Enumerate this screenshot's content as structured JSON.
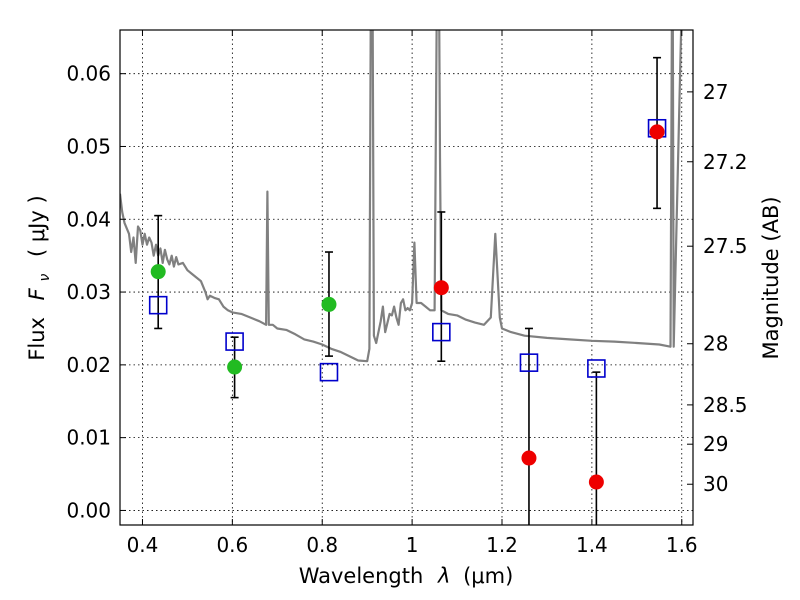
{
  "chart_data": {
    "type": "scatter",
    "title": "",
    "xlabel": "Wavelength",
    "xlabel_symbol": "λ",
    "xlabel_unit": "(μm)",
    "ylabel": "Flux",
    "ylabel_symbol": "F",
    "ylabel_subscript": "ν",
    "ylabel_unit": "( μJy )",
    "y2label": "Magnitude (AB)",
    "xlim": [
      0.35,
      1.625
    ],
    "ylim": [
      -0.002,
      0.066
    ],
    "xticks": [
      0.4,
      0.6,
      0.8,
      1.0,
      1.2,
      1.4,
      1.6
    ],
    "xtick_labels": [
      "0.4",
      "0.6",
      "0.8",
      "1",
      "1.2",
      "1.4",
      "1.6"
    ],
    "yticks": [
      0.0,
      0.01,
      0.02,
      0.03,
      0.04,
      0.05,
      0.06
    ],
    "ytick_labels": [
      "0.00",
      "0.01",
      "0.02",
      "0.03",
      "0.04",
      "0.05",
      "0.06"
    ],
    "magnitude_ticks": [
      {
        "label": "27",
        "flux": 0.0575
      },
      {
        "label": "27.2",
        "flux": 0.0479
      },
      {
        "label": "27.5",
        "flux": 0.0363
      },
      {
        "label": "28",
        "flux": 0.0229
      },
      {
        "label": "28.5",
        "flux": 0.0145
      },
      {
        "label": "29",
        "flux": 0.0091
      },
      {
        "label": "30",
        "flux": 0.0036
      }
    ],
    "grid": true,
    "colors": {
      "model": "#808080",
      "detection": "#22bb22",
      "measurement": "#ee0000",
      "model_flux": "#0000cc",
      "errorbar": "#000000"
    },
    "model_sed": [
      [
        0.35,
        0.0435
      ],
      [
        0.355,
        0.041
      ],
      [
        0.36,
        0.0395
      ],
      [
        0.37,
        0.038
      ],
      [
        0.375,
        0.0355
      ],
      [
        0.38,
        0.0375
      ],
      [
        0.385,
        0.034
      ],
      [
        0.39,
        0.039
      ],
      [
        0.395,
        0.0385
      ],
      [
        0.4,
        0.0365
      ],
      [
        0.405,
        0.038
      ],
      [
        0.41,
        0.0365
      ],
      [
        0.415,
        0.0375
      ],
      [
        0.42,
        0.0368
      ],
      [
        0.425,
        0.035
      ],
      [
        0.43,
        0.0365
      ],
      [
        0.435,
        0.035
      ],
      [
        0.44,
        0.036
      ],
      [
        0.445,
        0.034
      ],
      [
        0.45,
        0.0358
      ],
      [
        0.455,
        0.0345
      ],
      [
        0.46,
        0.0338
      ],
      [
        0.465,
        0.035
      ],
      [
        0.47,
        0.0335
      ],
      [
        0.475,
        0.0348
      ],
      [
        0.48,
        0.0338
      ],
      [
        0.49,
        0.034
      ],
      [
        0.5,
        0.033
      ],
      [
        0.51,
        0.0325
      ],
      [
        0.52,
        0.032
      ],
      [
        0.53,
        0.0315
      ],
      [
        0.54,
        0.03
      ],
      [
        0.545,
        0.029
      ],
      [
        0.55,
        0.0295
      ],
      [
        0.56,
        0.0292
      ],
      [
        0.57,
        0.029
      ],
      [
        0.58,
        0.028
      ],
      [
        0.59,
        0.0275
      ],
      [
        0.6,
        0.0272
      ],
      [
        0.62,
        0.027
      ],
      [
        0.64,
        0.0265
      ],
      [
        0.66,
        0.026
      ],
      [
        0.675,
        0.0255
      ],
      [
        0.678,
        0.0438
      ],
      [
        0.681,
        0.0255
      ],
      [
        0.69,
        0.0255
      ],
      [
        0.7,
        0.025
      ],
      [
        0.72,
        0.0248
      ],
      [
        0.74,
        0.0242
      ],
      [
        0.76,
        0.0235
      ],
      [
        0.78,
        0.0232
      ],
      [
        0.8,
        0.0228
      ],
      [
        0.82,
        0.0222
      ],
      [
        0.84,
        0.0218
      ],
      [
        0.86,
        0.0212
      ],
      [
        0.88,
        0.0206
      ],
      [
        0.9,
        0.0205
      ],
      [
        0.905,
        0.0222
      ],
      [
        0.908,
        0.07
      ],
      [
        0.912,
        0.07
      ],
      [
        0.915,
        0.024
      ],
      [
        0.92,
        0.023
      ],
      [
        0.93,
        0.026
      ],
      [
        0.935,
        0.028
      ],
      [
        0.94,
        0.0245
      ],
      [
        0.95,
        0.027
      ],
      [
        0.955,
        0.0268
      ],
      [
        0.96,
        0.028
      ],
      [
        0.965,
        0.0265
      ],
      [
        0.97,
        0.0255
      ],
      [
        0.975,
        0.0285
      ],
      [
        0.98,
        0.029
      ],
      [
        0.985,
        0.0275
      ],
      [
        0.99,
        0.0278
      ],
      [
        0.995,
        0.0275
      ],
      [
        1.0,
        0.0285
      ],
      [
        1.005,
        0.0368
      ],
      [
        1.01,
        0.0285
      ],
      [
        1.02,
        0.0285
      ],
      [
        1.03,
        0.028
      ],
      [
        1.04,
        0.0275
      ],
      [
        1.05,
        0.0275
      ],
      [
        1.055,
        0.07
      ],
      [
        1.06,
        0.07
      ],
      [
        1.062,
        0.0485
      ],
      [
        1.065,
        0.0275
      ],
      [
        1.08,
        0.027
      ],
      [
        1.1,
        0.0268
      ],
      [
        1.12,
        0.0262
      ],
      [
        1.14,
        0.0258
      ],
      [
        1.16,
        0.0255
      ],
      [
        1.175,
        0.0265
      ],
      [
        1.185,
        0.038
      ],
      [
        1.195,
        0.0265
      ],
      [
        1.2,
        0.025
      ],
      [
        1.22,
        0.0245
      ],
      [
        1.25,
        0.024
      ],
      [
        1.3,
        0.0237
      ],
      [
        1.35,
        0.0235
      ],
      [
        1.4,
        0.0233
      ],
      [
        1.45,
        0.0232
      ],
      [
        1.5,
        0.023
      ],
      [
        1.55,
        0.0228
      ],
      [
        1.575,
        0.0225
      ],
      [
        1.578,
        0.068
      ],
      [
        1.58,
        0.068
      ],
      [
        1.582,
        0.0225
      ],
      [
        1.6,
        0.07
      ],
      [
        1.625,
        0.07
      ]
    ],
    "model_fluxes": [
      {
        "x": 0.435,
        "y": 0.0282
      },
      {
        "x": 0.605,
        "y": 0.0232
      },
      {
        "x": 0.815,
        "y": 0.019
      },
      {
        "x": 1.065,
        "y": 0.0245
      },
      {
        "x": 1.26,
        "y": 0.0203
      },
      {
        "x": 1.41,
        "y": 0.0195
      },
      {
        "x": 1.545,
        "y": 0.0525
      }
    ],
    "detections": [
      {
        "x": 0.435,
        "y": 0.0328,
        "ylow": 0.025,
        "yhigh": 0.0405
      },
      {
        "x": 0.605,
        "y": 0.0197,
        "ylow": 0.0155,
        "yhigh": 0.0238
      },
      {
        "x": 0.815,
        "y": 0.0283,
        "ylow": 0.0212,
        "yhigh": 0.0355
      }
    ],
    "measurements": [
      {
        "x": 1.065,
        "y": 0.0306,
        "ylow": 0.0205,
        "yhigh": 0.041
      },
      {
        "x": 1.26,
        "y": 0.0072,
        "ylow": -0.003,
        "yhigh": 0.025
      },
      {
        "x": 1.41,
        "y": 0.0039,
        "ylow": -0.003,
        "yhigh": 0.019
      },
      {
        "x": 1.545,
        "y": 0.052,
        "ylow": 0.0415,
        "yhigh": 0.0622
      }
    ]
  }
}
